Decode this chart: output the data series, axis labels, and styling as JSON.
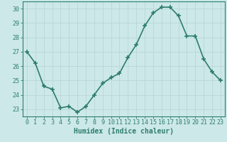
{
  "x": [
    0,
    1,
    2,
    3,
    4,
    5,
    6,
    7,
    8,
    9,
    10,
    11,
    12,
    13,
    14,
    15,
    16,
    17,
    18,
    19,
    20,
    21,
    22,
    23
  ],
  "y": [
    27.0,
    26.2,
    24.6,
    24.4,
    23.1,
    23.2,
    22.8,
    23.2,
    24.0,
    24.8,
    25.2,
    25.5,
    26.6,
    27.5,
    28.8,
    29.7,
    30.1,
    30.1,
    29.5,
    28.1,
    28.1,
    26.5,
    25.6,
    25.0
  ],
  "line_color": "#2e7d6e",
  "marker": "+",
  "bg_color": "#cce8e8",
  "grid_color": "#b8d8d8",
  "xlabel": "Humidex (Indice chaleur)",
  "ylim": [
    22.5,
    30.5
  ],
  "xlim": [
    -0.5,
    23.5
  ],
  "yticks": [
    23,
    24,
    25,
    26,
    27,
    28,
    29,
    30
  ],
  "xticks": [
    0,
    1,
    2,
    3,
    4,
    5,
    6,
    7,
    8,
    9,
    10,
    11,
    12,
    13,
    14,
    15,
    16,
    17,
    18,
    19,
    20,
    21,
    22,
    23
  ],
  "axis_color": "#2e7d6e",
  "tick_fontsize": 6,
  "label_fontsize": 7,
  "line_width": 1.2,
  "marker_size": 4
}
